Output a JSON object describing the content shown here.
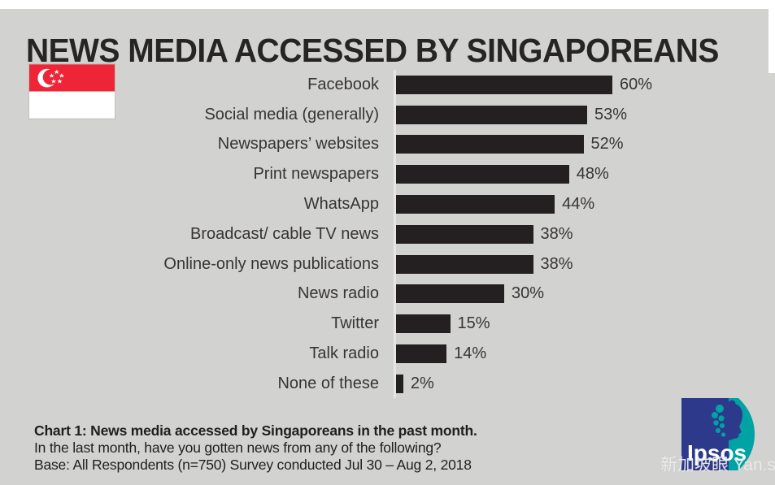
{
  "title": "NEWS MEDIA ACCESSED BY SINGAPOREANS",
  "flag": {
    "name": "singapore-flag",
    "red": "#ee2536"
  },
  "chart_data": {
    "type": "bar",
    "orientation": "horizontal",
    "title": "NEWS MEDIA ACCESSED BY SINGAPOREANS",
    "categories": [
      "Facebook",
      "Social media (generally)",
      "Newspapers’ websites",
      "Print newspapers",
      "WhatsApp",
      "Broadcast/ cable TV news",
      "Online-only news publications",
      "News radio",
      "Twitter",
      "Talk radio",
      "None of these"
    ],
    "values": [
      60,
      53,
      52,
      48,
      44,
      38,
      38,
      30,
      15,
      14,
      2
    ],
    "value_labels": [
      "60%",
      "53%",
      "52%",
      "48%",
      "44%",
      "38%",
      "38%",
      "30%",
      "15%",
      "14%",
      "2%"
    ],
    "xlabel": "",
    "ylabel": "",
    "xlim": [
      0,
      60
    ],
    "grid": false,
    "legend": false,
    "bar_color": "#242021"
  },
  "footer": {
    "line1": "Chart 1: News media accessed by Singaporeans in the past month.",
    "line2": "In the last month, have you gotten news from any of the following?",
    "line3": "Base: All Respondents (n=750) Survey conducted Jul 30 – Aug 2, 2018"
  },
  "logo": {
    "text": "Ipsos",
    "blue": "#2d3a8c",
    "teal": "#00a3a3"
  },
  "watermark": "新加坡眼 Yan.sg",
  "colors": {
    "background": "#d2d2d0",
    "bar": "#242021",
    "text": "#373435",
    "axis": "#e6e6e4"
  }
}
